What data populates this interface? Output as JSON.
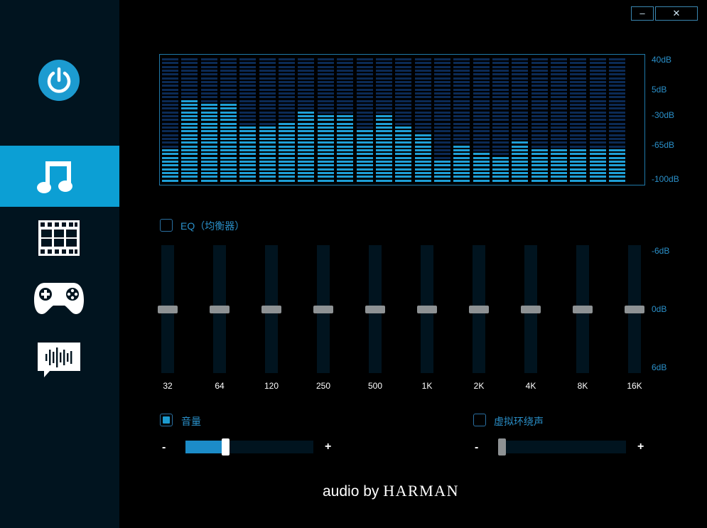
{
  "window": {
    "minimize_label": "–",
    "close_label": "✕"
  },
  "sidebar": {
    "power_icon": "power-icon",
    "items": [
      {
        "id": "music",
        "icon": "music-note-icon",
        "active": true
      },
      {
        "id": "movie",
        "icon": "film-strip-icon",
        "active": false
      },
      {
        "id": "game",
        "icon": "gamepad-icon",
        "active": false
      },
      {
        "id": "voice",
        "icon": "voice-chat-icon",
        "active": false
      }
    ]
  },
  "spectrum": {
    "db_labels": [
      "40dB",
      "5dB",
      "-30dB",
      "-65dB",
      "-100dB"
    ],
    "colors": {
      "lit": "#1f9fd6",
      "dim": "#0b2a55"
    },
    "bars": [
      0.27,
      0.67,
      0.63,
      0.63,
      0.45,
      0.45,
      0.48,
      0.57,
      0.54,
      0.54,
      0.42,
      0.54,
      0.45,
      0.39,
      0.18,
      0.3,
      0.24,
      0.21,
      0.33,
      0.27,
      0.27,
      0.27,
      0.27,
      0.27
    ]
  },
  "eq": {
    "label": "EQ（均衡器）",
    "enabled": false,
    "db_labels": [
      "-6dB",
      "0dB",
      "6dB"
    ],
    "bands": [
      {
        "freq": "32",
        "value": 0
      },
      {
        "freq": "64",
        "value": 0
      },
      {
        "freq": "120",
        "value": 0
      },
      {
        "freq": "250",
        "value": 0
      },
      {
        "freq": "500",
        "value": 0
      },
      {
        "freq": "1K",
        "value": 0
      },
      {
        "freq": "2K",
        "value": 0
      },
      {
        "freq": "4K",
        "value": 0
      },
      {
        "freq": "8K",
        "value": 0
      },
      {
        "freq": "16K",
        "value": 0
      }
    ]
  },
  "volume": {
    "label": "音量",
    "enabled": true,
    "value": 0.31,
    "minus": "-",
    "plus": "+"
  },
  "surround": {
    "label": "虚拟环绕声",
    "enabled": false,
    "value": 0.0,
    "minus": "-",
    "plus": "+"
  },
  "brand": {
    "part1": "audio by ",
    "part2": "HARMAN"
  },
  "colors": {
    "accent": "#1c9bd0",
    "sidebar_bg": "#01141f",
    "label_blue": "#2a8fc8"
  }
}
